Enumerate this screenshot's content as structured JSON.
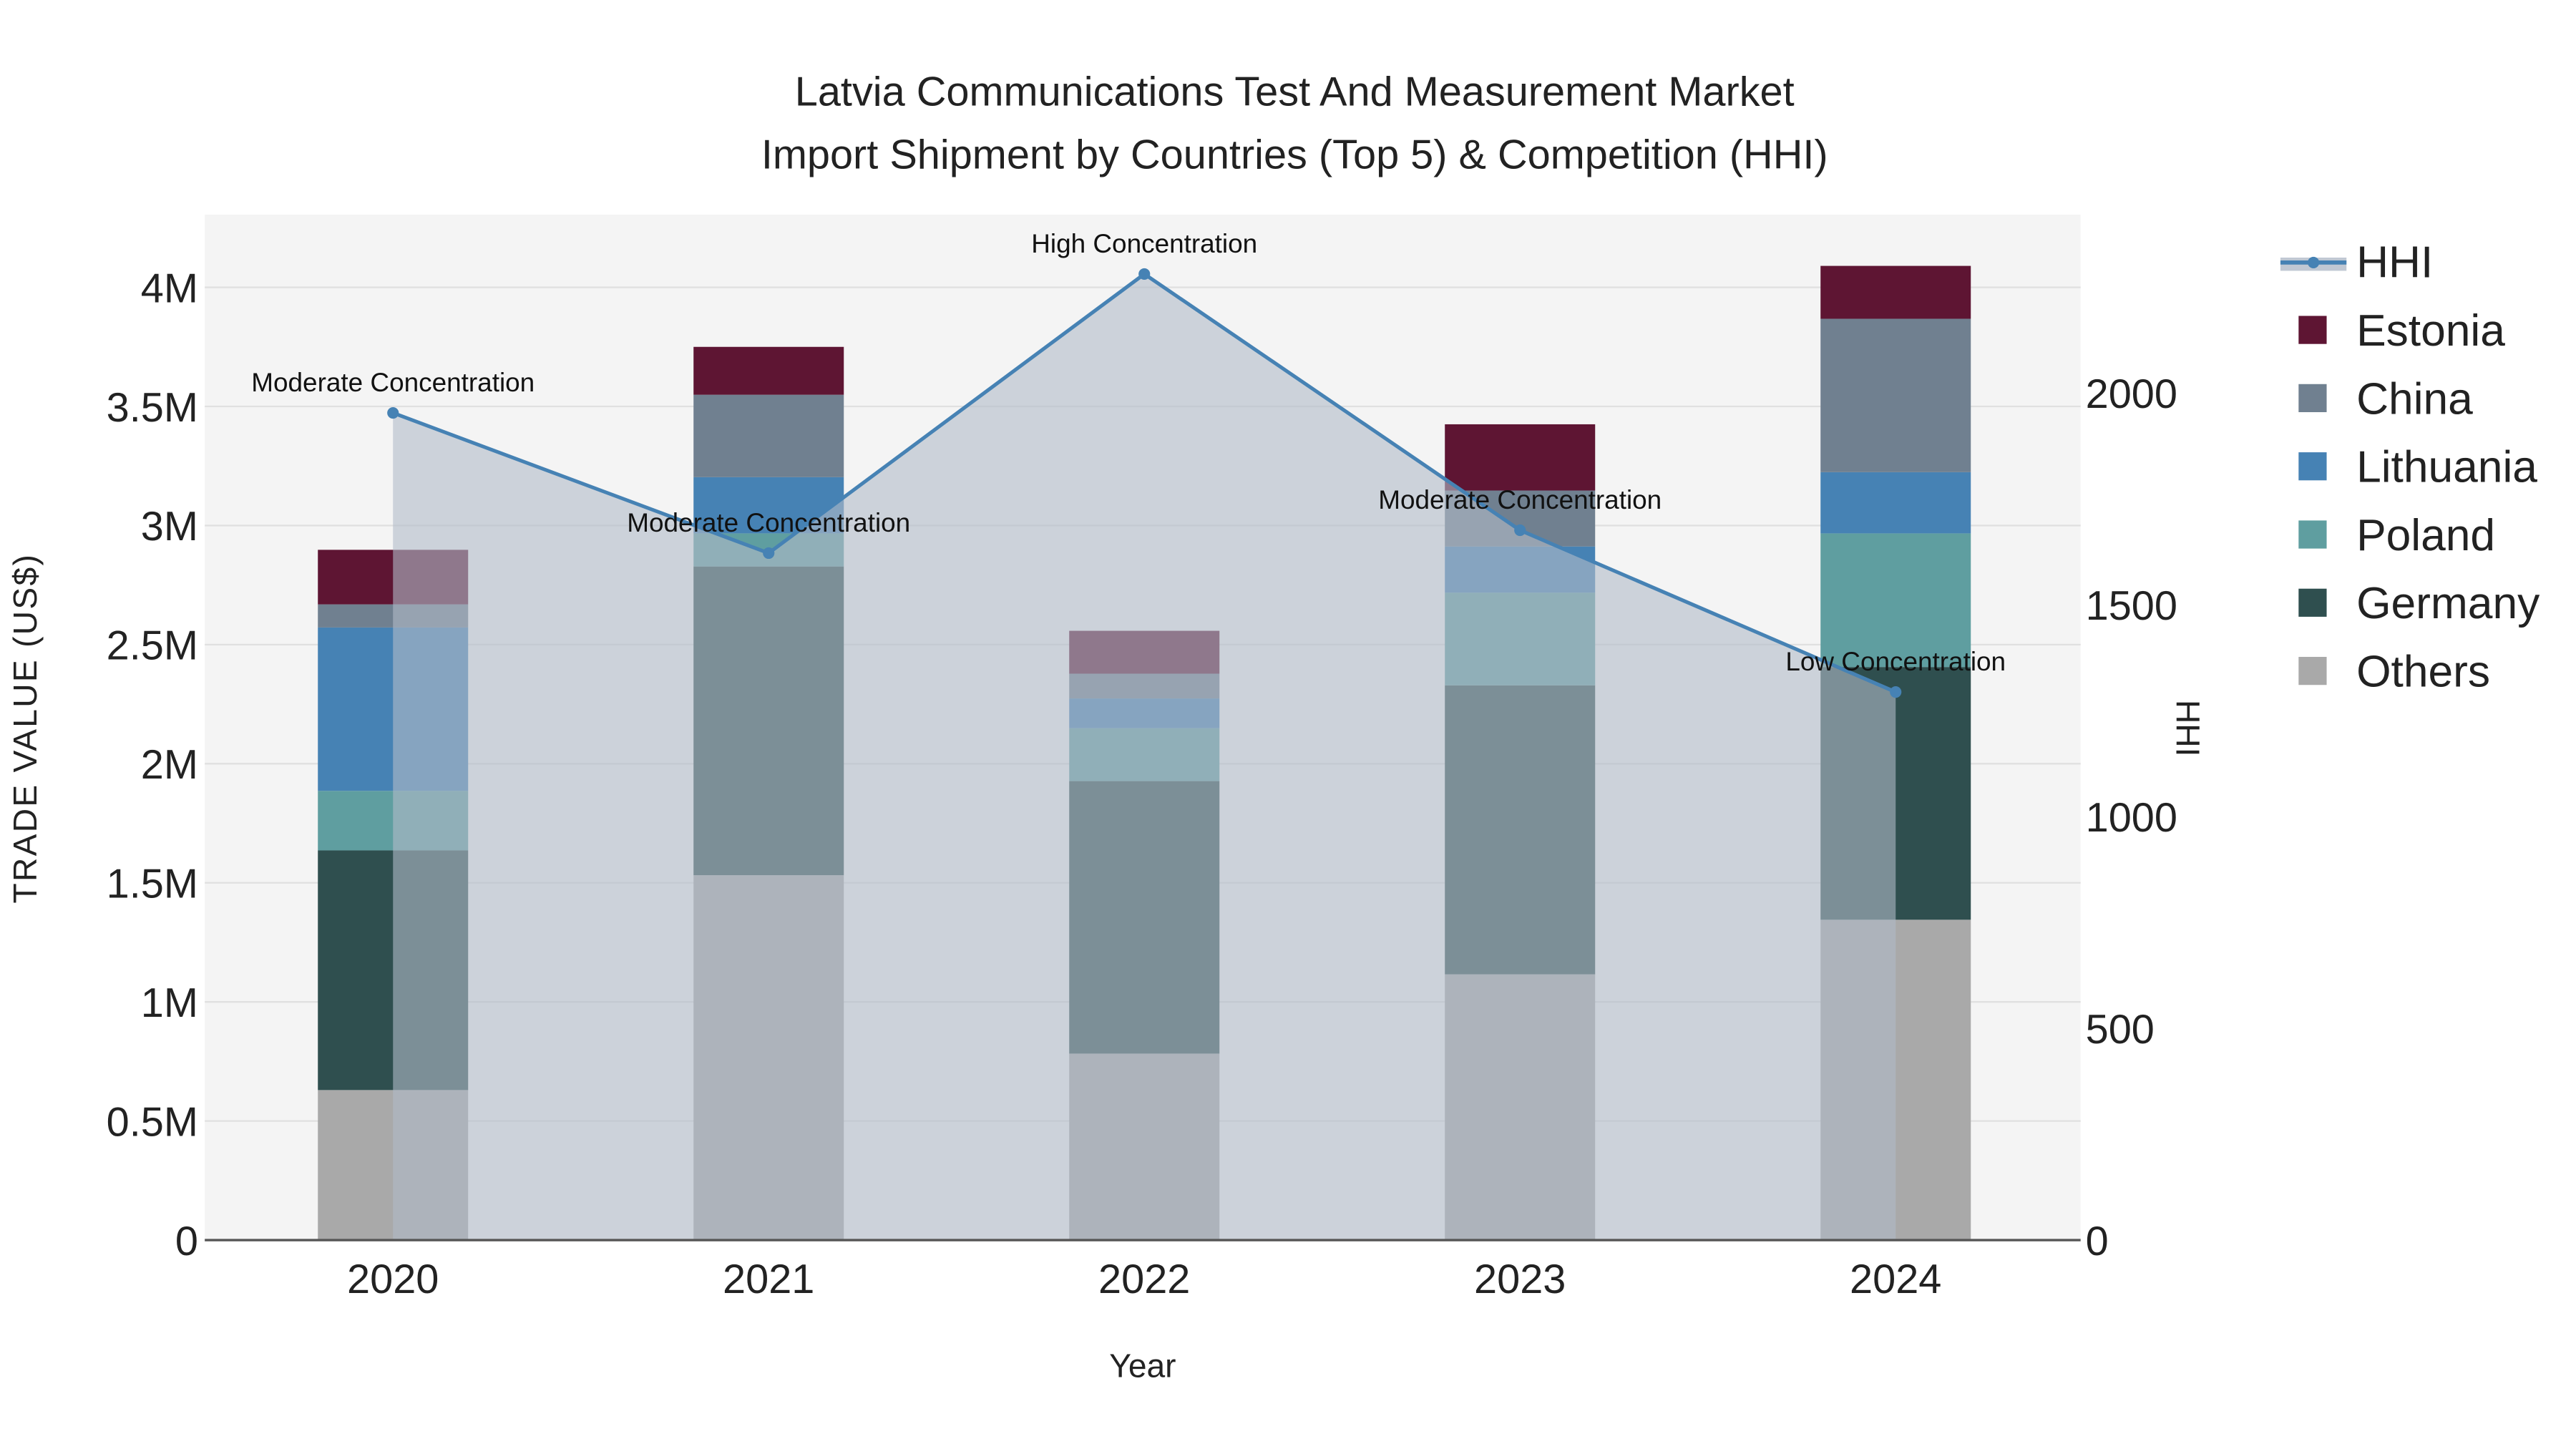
{
  "chart_data": {
    "type": "bar",
    "title_line1": "Latvia Communications Test And Measurement Market",
    "title_line2": "Import Shipment by Countries (Top 5) & Competition (HHI)",
    "xlabel": "Year",
    "ylabel": "TRADE VALUE (US$)",
    "y2label": "HHI",
    "categories": [
      "2020",
      "2021",
      "2022",
      "2023",
      "2024"
    ],
    "ylim": [
      0,
      4300000
    ],
    "y_ticks": [
      0,
      500000,
      1000000,
      1500000,
      2000000,
      2500000,
      3000000,
      3500000,
      4000000
    ],
    "y_tick_labels": [
      "0",
      "0.5M",
      "1M",
      "1.5M",
      "2M",
      "2.5M",
      "3M",
      "3.5M",
      "4M"
    ],
    "y2lim": [
      0,
      2420
    ],
    "y2_ticks": [
      0,
      500,
      1000,
      1500,
      2000
    ],
    "y2_tick_labels": [
      "0",
      "500",
      "1000",
      "1500",
      "2000"
    ],
    "stacked": true,
    "series": [
      {
        "name": "Others",
        "color": "#a9a9a9",
        "values": [
          630000,
          1532000,
          783000,
          1116000,
          1345000
        ]
      },
      {
        "name": "Germany",
        "color": "#2f4f4f",
        "values": [
          1006000,
          1296000,
          1144000,
          1213000,
          1061000
        ]
      },
      {
        "name": "Poland",
        "color": "#5f9ea0",
        "values": [
          250000,
          139000,
          222000,
          389000,
          561000
        ]
      },
      {
        "name": "Lithuania",
        "color": "#4682b4",
        "values": [
          686000,
          236000,
          125000,
          194000,
          257000
        ]
      },
      {
        "name": "China",
        "color": "#708090",
        "values": [
          97000,
          346000,
          104000,
          235000,
          644000
        ]
      },
      {
        "name": "Estonia",
        "color": "#5e1533",
        "values": [
          229000,
          201000,
          180000,
          278000,
          222000
        ]
      }
    ],
    "line_series": {
      "name": "HHI",
      "color": "#4682b4",
      "axis": "right",
      "values": [
        1953,
        1622,
        2281,
        1676,
        1294
      ],
      "annotations": [
        "Moderate Concentration",
        "Moderate Concentration",
        "High Concentration",
        "Moderate Concentration",
        "Low Concentration"
      ]
    },
    "legend_order": [
      "HHI",
      "Estonia",
      "China",
      "Lithuania",
      "Poland",
      "Germany",
      "Others"
    ],
    "legend_placement": "right",
    "grid": true
  }
}
